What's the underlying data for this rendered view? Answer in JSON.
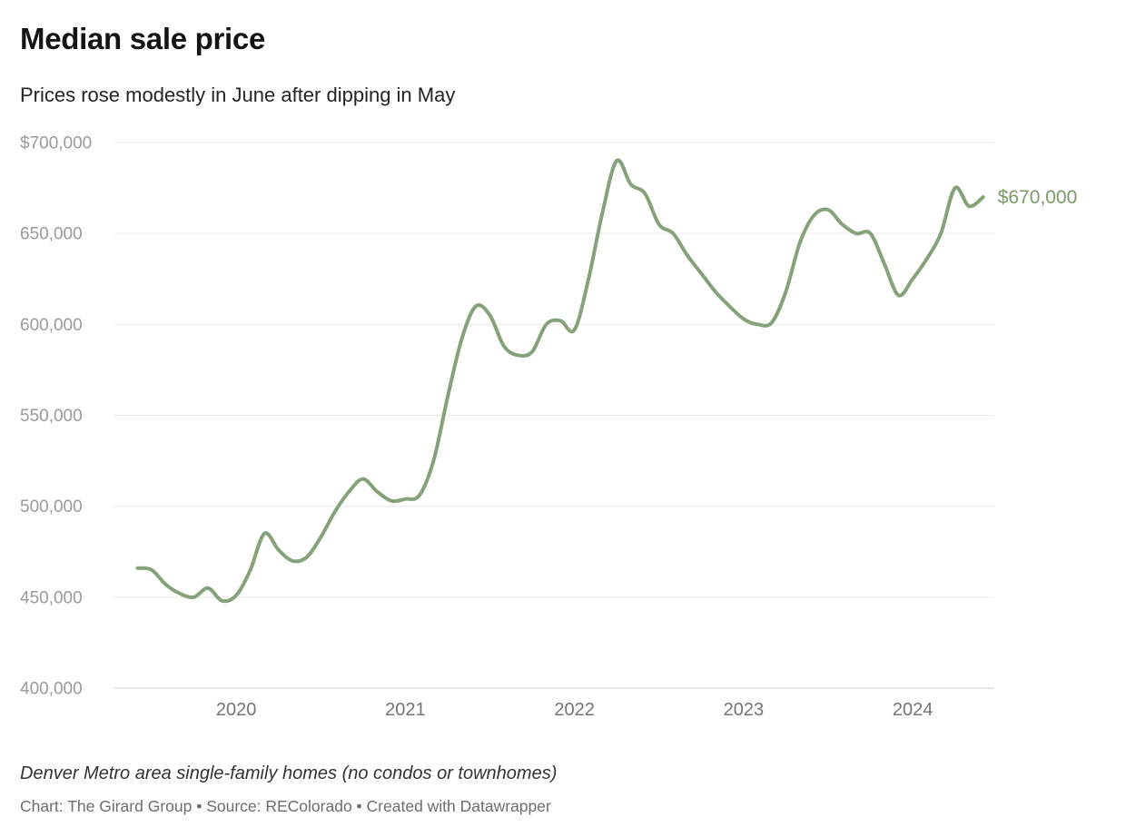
{
  "chart_data": {
    "type": "line",
    "title": "Median sale price",
    "subtitle": "Prices rose modestly in June after dipping in May",
    "series_name": "Median sale price",
    "x": [
      "2019-06",
      "2019-07",
      "2019-08",
      "2019-09",
      "2019-10",
      "2019-11",
      "2019-12",
      "2020-01",
      "2020-02",
      "2020-03",
      "2020-04",
      "2020-05",
      "2020-06",
      "2020-07",
      "2020-08",
      "2020-09",
      "2020-10",
      "2020-11",
      "2020-12",
      "2021-01",
      "2021-02",
      "2021-03",
      "2021-04",
      "2021-05",
      "2021-06",
      "2021-07",
      "2021-08",
      "2021-09",
      "2021-10",
      "2021-11",
      "2021-12",
      "2022-01",
      "2022-02",
      "2022-03",
      "2022-04",
      "2022-05",
      "2022-06",
      "2022-07",
      "2022-08",
      "2022-09",
      "2022-10",
      "2022-11",
      "2022-12",
      "2023-01",
      "2023-02",
      "2023-03",
      "2023-04",
      "2023-05",
      "2023-06",
      "2023-07",
      "2023-08",
      "2023-09",
      "2023-10",
      "2023-11",
      "2023-12",
      "2024-01",
      "2024-02",
      "2024-03",
      "2024-04",
      "2024-05",
      "2024-06"
    ],
    "values": [
      466000,
      465000,
      457000,
      452000,
      450000,
      455000,
      448000,
      451000,
      465000,
      485000,
      476000,
      470000,
      472000,
      483000,
      497000,
      508000,
      515000,
      508000,
      503000,
      504000,
      506000,
      525000,
      560000,
      592000,
      610000,
      605000,
      588000,
      583000,
      585000,
      600000,
      602000,
      597000,
      625000,
      662000,
      690000,
      677000,
      672000,
      655000,
      650000,
      638000,
      628000,
      618000,
      610000,
      603000,
      600000,
      601000,
      618000,
      645000,
      660000,
      663000,
      655000,
      650000,
      650000,
      633000,
      616000,
      625000,
      636000,
      650000,
      675000,
      665000,
      670000
    ],
    "ylim": [
      400000,
      700000
    ],
    "y_ticks": [
      400000,
      450000,
      500000,
      550000,
      600000,
      650000,
      700000
    ],
    "y_tick_labels": [
      "400,000",
      "450,000",
      "500,000",
      "550,000",
      "600,000",
      "650,000",
      "$700,000"
    ],
    "x_tick_labels": [
      "2020",
      "2021",
      "2022",
      "2023",
      "2024"
    ],
    "grid": "horizontal",
    "legend": "none",
    "line_color": "#86a27a",
    "end_label_color": "#7a9a6a",
    "end_label": "$670,000"
  },
  "footer": {
    "note": "Denver Metro area single-family homes (no condos or townhomes)",
    "byline": "Chart: The Girard Group • Source: REColorado • Created with Datawrapper"
  }
}
